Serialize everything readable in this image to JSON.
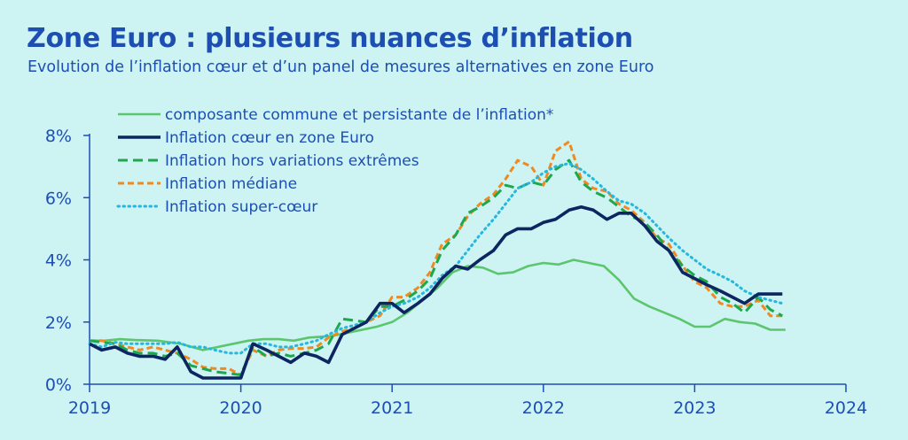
{
  "header": {
    "title": "Zone Euro : plusieurs nuances d’inflation",
    "subtitle": "Evolution de l’inflation cœur et d’un panel de mesures alternatives en zone Euro"
  },
  "chart_data": {
    "type": "line",
    "title": "Zone Euro : plusieurs nuances d’inflation",
    "subtitle": "Evolution de l’inflation cœur et d’un panel de mesures alternatives en zone Euro",
    "xlabel": "",
    "ylabel": "",
    "xlim": [
      2019,
      2024
    ],
    "ylim": [
      0,
      8
    ],
    "x_ticks": [
      "2019",
      "2020",
      "2021",
      "2022",
      "2023",
      "2024"
    ],
    "y_ticks": [
      "0%",
      "2%",
      "4%",
      "6%",
      "8%"
    ],
    "grid": false,
    "legend_position": "top-left",
    "series": [
      {
        "name": "composante commune et persistante de l’inflation*",
        "color": "#5cc66e",
        "dash": "solid",
        "points": [
          [
            2019.0,
            1.4
          ],
          [
            2019.1,
            1.4
          ],
          [
            2019.2,
            1.45
          ],
          [
            2019.3,
            1.42
          ],
          [
            2019.45,
            1.4
          ],
          [
            2019.6,
            1.3
          ],
          [
            2019.75,
            1.1
          ],
          [
            2019.85,
            1.2
          ],
          [
            2019.95,
            1.3
          ],
          [
            2020.05,
            1.4
          ],
          [
            2020.15,
            1.45
          ],
          [
            2020.25,
            1.45
          ],
          [
            2020.35,
            1.4
          ],
          [
            2020.45,
            1.5
          ],
          [
            2020.6,
            1.55
          ],
          [
            2020.75,
            1.7
          ],
          [
            2020.9,
            1.85
          ],
          [
            2021.0,
            2.0
          ],
          [
            2021.1,
            2.3
          ],
          [
            2021.2,
            2.7
          ],
          [
            2021.3,
            3.1
          ],
          [
            2021.4,
            3.6
          ],
          [
            2021.5,
            3.8
          ],
          [
            2021.6,
            3.75
          ],
          [
            2021.7,
            3.55
          ],
          [
            2021.8,
            3.6
          ],
          [
            2021.9,
            3.8
          ],
          [
            2022.0,
            3.9
          ],
          [
            2022.1,
            3.85
          ],
          [
            2022.2,
            4.0
          ],
          [
            2022.3,
            3.9
          ],
          [
            2022.4,
            3.8
          ],
          [
            2022.5,
            3.35
          ],
          [
            2022.6,
            2.75
          ],
          [
            2022.7,
            2.5
          ],
          [
            2022.8,
            2.3
          ],
          [
            2022.9,
            2.1
          ],
          [
            2023.0,
            1.85
          ],
          [
            2023.1,
            1.85
          ],
          [
            2023.2,
            2.1
          ],
          [
            2023.3,
            2.0
          ],
          [
            2023.4,
            1.95
          ],
          [
            2023.5,
            1.75
          ],
          [
            2023.6,
            1.75
          ]
        ]
      },
      {
        "name": "Inflation cœur en zone Euro",
        "color": "#0d2560",
        "dash": "solid",
        "points": [
          [
            2019.0,
            1.3
          ],
          [
            2019.08,
            1.1
          ],
          [
            2019.17,
            1.2
          ],
          [
            2019.25,
            1.0
          ],
          [
            2019.33,
            0.9
          ],
          [
            2019.42,
            0.9
          ],
          [
            2019.5,
            0.8
          ],
          [
            2019.58,
            1.2
          ],
          [
            2019.67,
            0.4
          ],
          [
            2019.75,
            0.2
          ],
          [
            2019.83,
            0.2
          ],
          [
            2019.92,
            0.2
          ],
          [
            2020.0,
            0.2
          ],
          [
            2020.08,
            1.3
          ],
          [
            2020.17,
            1.1
          ],
          [
            2020.25,
            0.9
          ],
          [
            2020.33,
            0.7
          ],
          [
            2020.42,
            1.0
          ],
          [
            2020.5,
            0.9
          ],
          [
            2020.58,
            0.7
          ],
          [
            2020.67,
            1.6
          ],
          [
            2020.75,
            1.8
          ],
          [
            2020.83,
            2.0
          ],
          [
            2020.92,
            2.6
          ],
          [
            2021.0,
            2.6
          ],
          [
            2021.08,
            2.3
          ],
          [
            2021.17,
            2.6
          ],
          [
            2021.25,
            2.9
          ],
          [
            2021.33,
            3.4
          ],
          [
            2021.42,
            3.8
          ],
          [
            2021.5,
            3.7
          ],
          [
            2021.58,
            4.0
          ],
          [
            2021.67,
            4.3
          ],
          [
            2021.75,
            4.8
          ],
          [
            2021.83,
            5.0
          ],
          [
            2021.92,
            5.0
          ],
          [
            2022.0,
            5.2
          ],
          [
            2022.08,
            5.3
          ],
          [
            2022.17,
            5.6
          ],
          [
            2022.25,
            5.7
          ],
          [
            2022.33,
            5.6
          ],
          [
            2022.42,
            5.3
          ],
          [
            2022.5,
            5.5
          ],
          [
            2022.58,
            5.5
          ],
          [
            2022.67,
            5.1
          ],
          [
            2022.75,
            4.6
          ],
          [
            2022.83,
            4.3
          ],
          [
            2022.92,
            3.6
          ],
          [
            2023.0,
            3.4
          ],
          [
            2023.08,
            3.2
          ],
          [
            2023.17,
            3.0
          ],
          [
            2023.25,
            2.8
          ],
          [
            2023.33,
            2.6
          ],
          [
            2023.42,
            2.9
          ],
          [
            2023.5,
            2.9
          ],
          [
            2023.58,
            2.9
          ]
        ]
      },
      {
        "name": "Inflation hors variations extrêmes",
        "color": "#1ea84d",
        "dash": "long-dash",
        "points": [
          [
            2019.0,
            1.4
          ],
          [
            2019.08,
            1.35
          ],
          [
            2019.17,
            1.3
          ],
          [
            2019.25,
            1.1
          ],
          [
            2019.33,
            1.0
          ],
          [
            2019.42,
            1.0
          ],
          [
            2019.5,
            0.9
          ],
          [
            2019.58,
            1.0
          ],
          [
            2019.67,
            0.6
          ],
          [
            2019.75,
            0.5
          ],
          [
            2019.83,
            0.4
          ],
          [
            2019.92,
            0.35
          ],
          [
            2020.0,
            0.3
          ],
          [
            2020.08,
            1.2
          ],
          [
            2020.17,
            0.9
          ],
          [
            2020.25,
            1.0
          ],
          [
            2020.33,
            0.9
          ],
          [
            2020.42,
            1.0
          ],
          [
            2020.5,
            1.1
          ],
          [
            2020.58,
            1.3
          ],
          [
            2020.67,
            2.1
          ],
          [
            2020.75,
            2.05
          ],
          [
            2020.83,
            2.0
          ],
          [
            2020.92,
            2.5
          ],
          [
            2021.0,
            2.5
          ],
          [
            2021.08,
            2.7
          ],
          [
            2021.17,
            3.0
          ],
          [
            2021.25,
            3.4
          ],
          [
            2021.33,
            4.3
          ],
          [
            2021.42,
            4.8
          ],
          [
            2021.5,
            5.5
          ],
          [
            2021.58,
            5.7
          ],
          [
            2021.67,
            6.0
          ],
          [
            2021.75,
            6.4
          ],
          [
            2021.83,
            6.3
          ],
          [
            2021.92,
            6.5
          ],
          [
            2022.0,
            6.4
          ],
          [
            2022.08,
            6.9
          ],
          [
            2022.17,
            7.2
          ],
          [
            2022.25,
            6.5
          ],
          [
            2022.33,
            6.2
          ],
          [
            2022.42,
            6.0
          ],
          [
            2022.5,
            5.7
          ],
          [
            2022.58,
            5.4
          ],
          [
            2022.67,
            5.2
          ],
          [
            2022.75,
            4.8
          ],
          [
            2022.83,
            4.3
          ],
          [
            2022.92,
            3.8
          ],
          [
            2023.0,
            3.5
          ],
          [
            2023.08,
            3.3
          ],
          [
            2023.17,
            2.8
          ],
          [
            2023.25,
            2.6
          ],
          [
            2023.33,
            2.3
          ],
          [
            2023.42,
            2.8
          ],
          [
            2023.5,
            2.4
          ],
          [
            2023.58,
            2.2
          ]
        ]
      },
      {
        "name": "Inflation médiane",
        "color": "#f08a20",
        "dash": "dash",
        "points": [
          [
            2019.0,
            1.4
          ],
          [
            2019.08,
            1.4
          ],
          [
            2019.17,
            1.3
          ],
          [
            2019.25,
            1.2
          ],
          [
            2019.33,
            1.1
          ],
          [
            2019.42,
            1.2
          ],
          [
            2019.5,
            1.1
          ],
          [
            2019.58,
            1.0
          ],
          [
            2019.67,
            0.8
          ],
          [
            2019.75,
            0.55
          ],
          [
            2019.83,
            0.5
          ],
          [
            2019.92,
            0.5
          ],
          [
            2020.0,
            0.3
          ],
          [
            2020.08,
            1.1
          ],
          [
            2020.17,
            0.9
          ],
          [
            2020.25,
            1.1
          ],
          [
            2020.33,
            1.15
          ],
          [
            2020.42,
            1.15
          ],
          [
            2020.5,
            1.2
          ],
          [
            2020.58,
            1.5
          ],
          [
            2020.67,
            1.7
          ],
          [
            2020.75,
            1.8
          ],
          [
            2020.83,
            2.0
          ],
          [
            2020.92,
            2.2
          ],
          [
            2021.0,
            2.8
          ],
          [
            2021.08,
            2.8
          ],
          [
            2021.17,
            3.1
          ],
          [
            2021.25,
            3.6
          ],
          [
            2021.33,
            4.5
          ],
          [
            2021.42,
            4.8
          ],
          [
            2021.5,
            5.4
          ],
          [
            2021.58,
            5.8
          ],
          [
            2021.67,
            6.1
          ],
          [
            2021.75,
            6.6
          ],
          [
            2021.83,
            7.2
          ],
          [
            2021.92,
            7.0
          ],
          [
            2022.0,
            6.4
          ],
          [
            2022.08,
            7.5
          ],
          [
            2022.17,
            7.8
          ],
          [
            2022.25,
            6.6
          ],
          [
            2022.33,
            6.3
          ],
          [
            2022.42,
            6.2
          ],
          [
            2022.5,
            5.8
          ],
          [
            2022.58,
            5.6
          ],
          [
            2022.67,
            5.2
          ],
          [
            2022.75,
            4.7
          ],
          [
            2022.83,
            4.5
          ],
          [
            2022.92,
            3.8
          ],
          [
            2023.0,
            3.3
          ],
          [
            2023.08,
            3.1
          ],
          [
            2023.17,
            2.6
          ],
          [
            2023.25,
            2.5
          ],
          [
            2023.33,
            2.5
          ],
          [
            2023.42,
            2.7
          ],
          [
            2023.5,
            2.2
          ],
          [
            2023.58,
            2.2
          ]
        ]
      },
      {
        "name": "Inflation super-cœur",
        "color": "#26b7df",
        "dash": "dot",
        "points": [
          [
            2019.0,
            1.3
          ],
          [
            2019.08,
            1.2
          ],
          [
            2019.17,
            1.35
          ],
          [
            2019.25,
            1.3
          ],
          [
            2019.33,
            1.3
          ],
          [
            2019.42,
            1.3
          ],
          [
            2019.5,
            1.3
          ],
          [
            2019.58,
            1.35
          ],
          [
            2019.67,
            1.2
          ],
          [
            2019.75,
            1.2
          ],
          [
            2019.83,
            1.1
          ],
          [
            2019.92,
            1.0
          ],
          [
            2020.0,
            1.0
          ],
          [
            2020.08,
            1.3
          ],
          [
            2020.17,
            1.3
          ],
          [
            2020.25,
            1.2
          ],
          [
            2020.33,
            1.2
          ],
          [
            2020.42,
            1.3
          ],
          [
            2020.5,
            1.4
          ],
          [
            2020.58,
            1.6
          ],
          [
            2020.67,
            1.8
          ],
          [
            2020.75,
            1.9
          ],
          [
            2020.83,
            2.0
          ],
          [
            2020.92,
            2.3
          ],
          [
            2021.0,
            2.5
          ],
          [
            2021.08,
            2.6
          ],
          [
            2021.17,
            2.8
          ],
          [
            2021.25,
            3.1
          ],
          [
            2021.33,
            3.5
          ],
          [
            2021.42,
            3.8
          ],
          [
            2021.5,
            4.3
          ],
          [
            2021.58,
            4.8
          ],
          [
            2021.67,
            5.3
          ],
          [
            2021.75,
            5.8
          ],
          [
            2021.83,
            6.3
          ],
          [
            2021.92,
            6.5
          ],
          [
            2022.0,
            6.8
          ],
          [
            2022.08,
            7.0
          ],
          [
            2022.17,
            7.1
          ],
          [
            2022.25,
            6.9
          ],
          [
            2022.33,
            6.6
          ],
          [
            2022.42,
            6.2
          ],
          [
            2022.5,
            5.9
          ],
          [
            2022.58,
            5.8
          ],
          [
            2022.67,
            5.5
          ],
          [
            2022.75,
            5.1
          ],
          [
            2022.83,
            4.7
          ],
          [
            2022.92,
            4.3
          ],
          [
            2023.0,
            4.0
          ],
          [
            2023.08,
            3.7
          ],
          [
            2023.17,
            3.5
          ],
          [
            2023.25,
            3.3
          ],
          [
            2023.33,
            3.0
          ],
          [
            2023.42,
            2.8
          ],
          [
            2023.5,
            2.7
          ],
          [
            2023.58,
            2.6
          ]
        ]
      }
    ]
  }
}
